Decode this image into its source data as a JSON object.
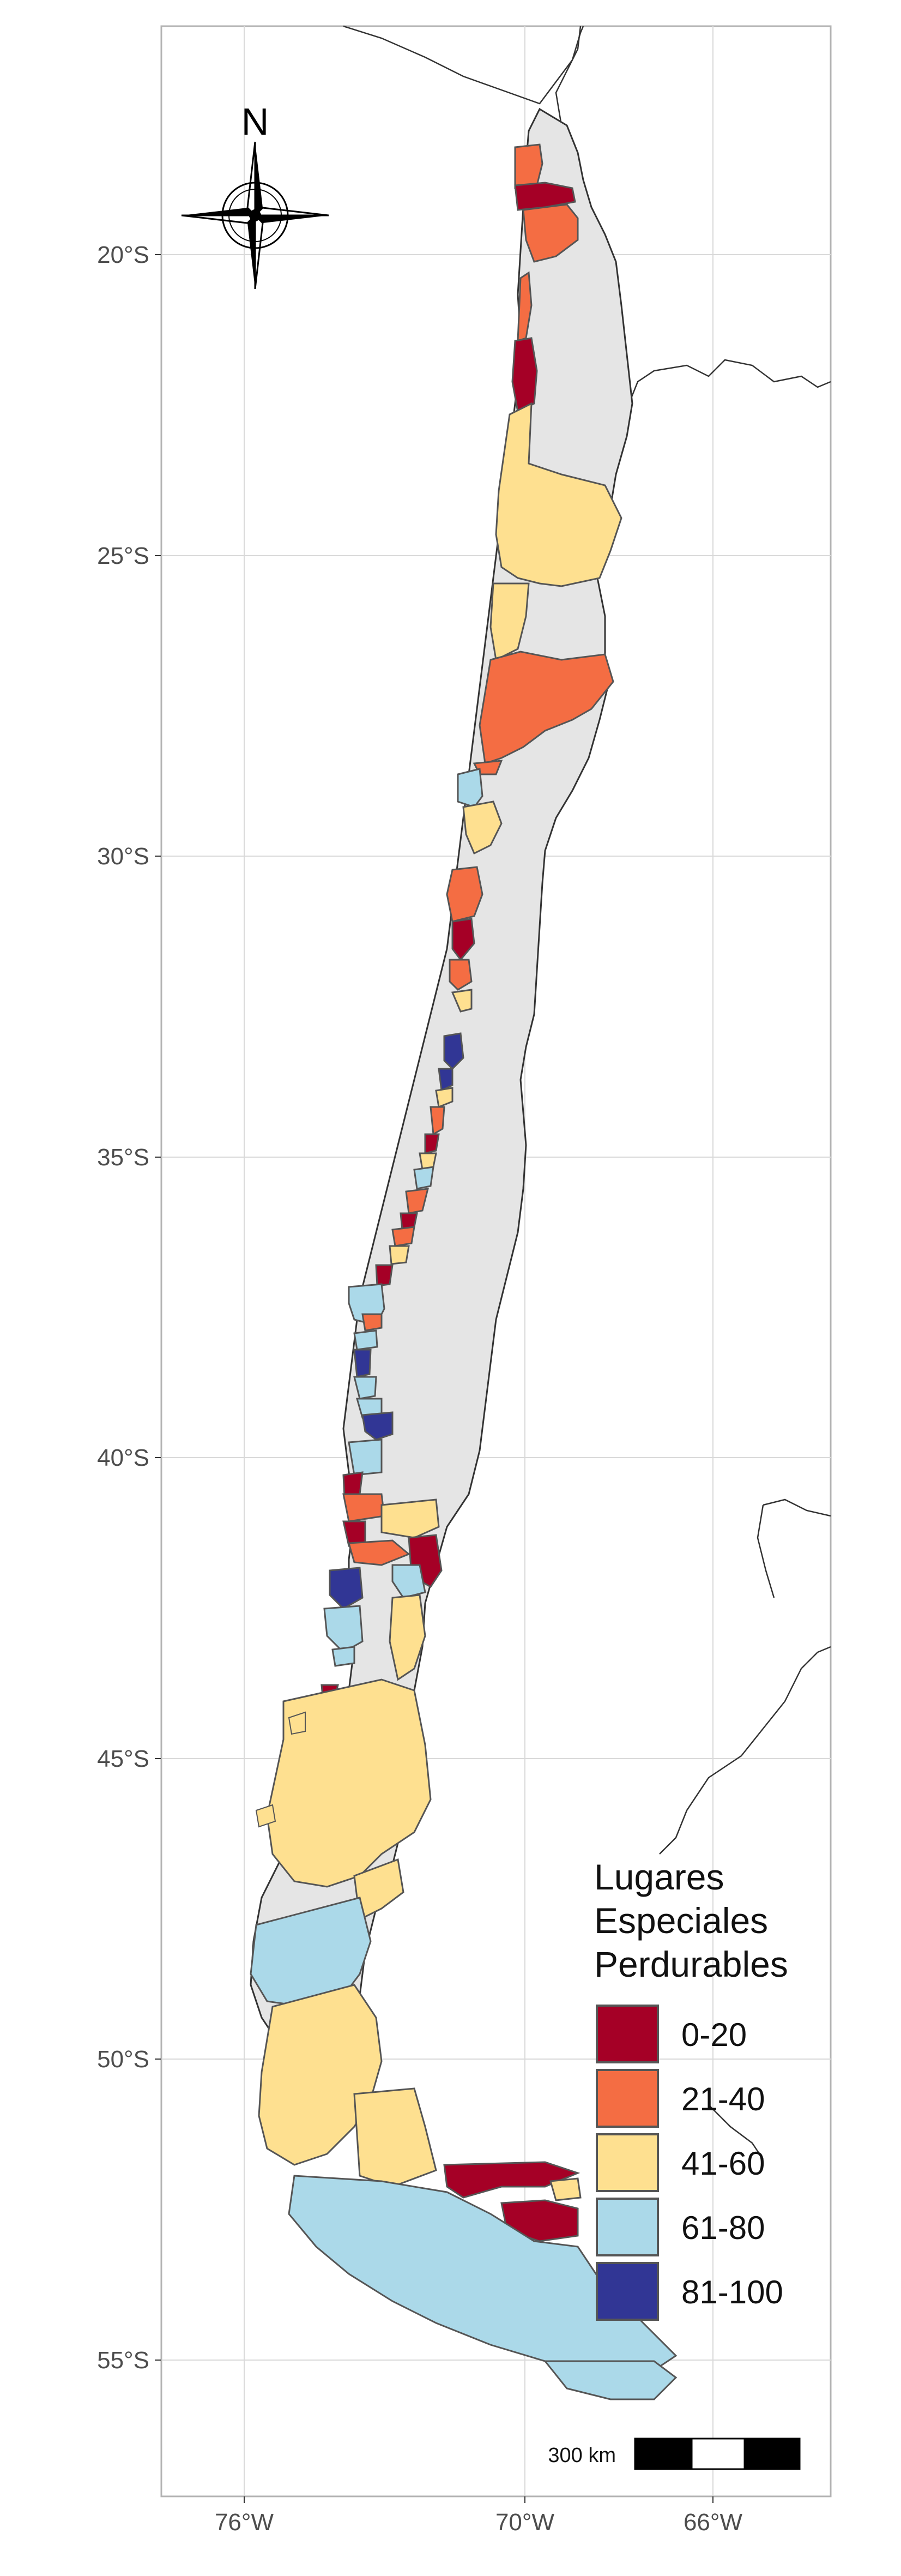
{
  "map": {
    "x_ticks": [
      "76°W",
      "70°W",
      "66°W"
    ],
    "y_ticks": [
      "20°S",
      "25°S",
      "30°S",
      "35°S",
      "40°S",
      "45°S",
      "50°S",
      "55°S"
    ],
    "north_label": "N",
    "scale_bar_label": "300 km"
  },
  "legend": {
    "title_lines": [
      "Lugares",
      "Especiales",
      "Perdurables"
    ],
    "items": [
      {
        "label": "0-20",
        "color": "#a50026"
      },
      {
        "label": "21-40",
        "color": "#f46d43"
      },
      {
        "label": "41-60",
        "color": "#fee090"
      },
      {
        "label": "61-80",
        "color": "#abd9e9"
      },
      {
        "label": "81-100",
        "color": "#313695"
      }
    ]
  },
  "colors": {
    "panel_border": "#b3b3b3",
    "grid": "#d9d9d9",
    "region_border": "#555555",
    "neighbor_fill": "#e5e5e5",
    "outline": "#333333"
  }
}
